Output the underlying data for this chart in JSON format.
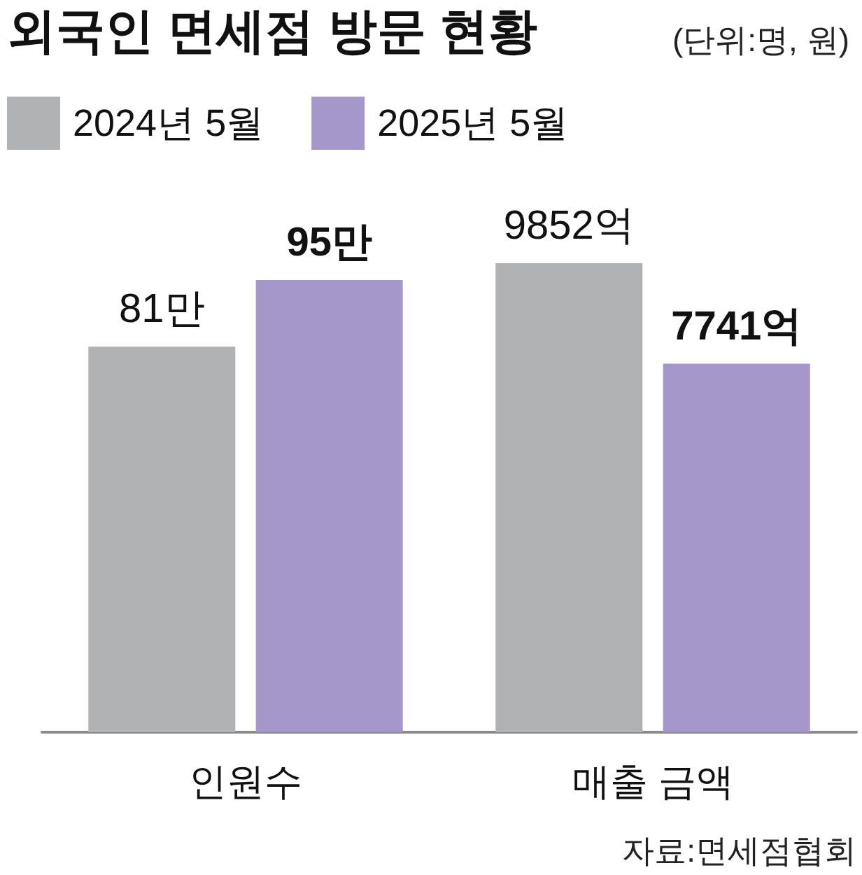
{
  "chart_data": {
    "type": "bar",
    "title": "외국인 면세점 방문 현황",
    "subtitle": "(단위:명, 원)",
    "categories": [
      "인원수",
      "매출 금액"
    ],
    "series": [
      {
        "name": "2024년 5월",
        "color": "#b1b2b4",
        "values": [
          81,
          null
        ],
        "value_labels": [
          "81만",
          null
        ]
      },
      {
        "name": "2025년 5월",
        "color": "#a597c9",
        "values": [
          95,
          null
        ],
        "value_labels": [
          "95만",
          null
        ]
      },
      {
        "color": "#b1b2b4",
        "values": [
          null,
          9852
        ],
        "value_labels": [
          null,
          "9852억"
        ],
        "axis": "y2"
      },
      {
        "color": "#a597c9",
        "values": [
          null,
          7741
        ],
        "value_labels": [
          null,
          "7741억"
        ],
        "axis": "y2"
      }
    ],
    "legend": "top left",
    "tick_labels": "x",
    "annotations": [
      "자료:면세점협회"
    ]
  }
}
